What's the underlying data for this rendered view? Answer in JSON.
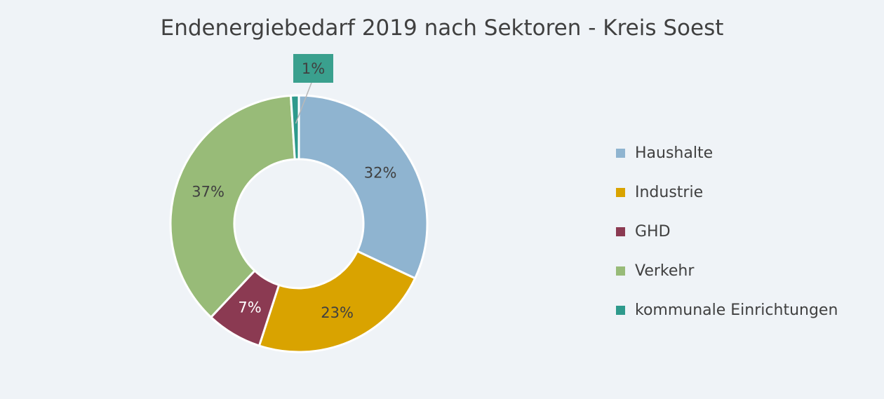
{
  "chart_data": {
    "type": "pie",
    "variant": "donut",
    "title": "Endenergiebedarf 2019 nach Sektoren - Kreis Soest",
    "categories": [
      "Haushalte",
      "Industrie",
      "GHD",
      "Verkehr",
      "kommunale Einrichtungen"
    ],
    "values": [
      32,
      23,
      7,
      37,
      1
    ],
    "data_labels": [
      "32%",
      "23%",
      "7%",
      "37%",
      "1%"
    ],
    "colors": [
      "#8fb4d0",
      "#d9a300",
      "#8b3a52",
      "#98bb78",
      "#2e9a8c"
    ],
    "legend_position": "right"
  }
}
